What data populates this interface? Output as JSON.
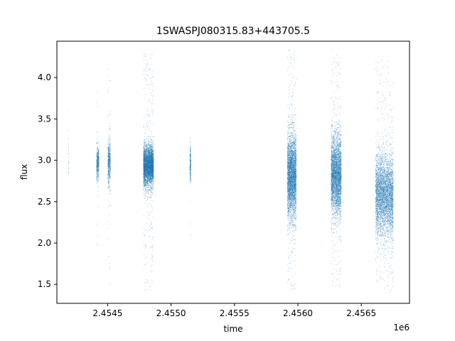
{
  "chart_data": {
    "type": "scatter",
    "title": "1SWASPJ080315.83+443705.5",
    "xlabel": "time",
    "ylabel": "flux",
    "x_offset_label": "1e6",
    "xlim": [
      2454100,
      2456880
    ],
    "ylim": [
      1.27,
      4.44
    ],
    "x_ticks": [
      2454500,
      2455000,
      2455500,
      2456000,
      2456500
    ],
    "x_tick_labels": [
      "2.4545",
      "2.4550",
      "2.4555",
      "2.4560",
      "2.4565"
    ],
    "y_ticks": [
      1.5,
      2.0,
      2.5,
      3.0,
      3.5,
      4.0
    ],
    "y_tick_labels": [
      "1.5",
      "2.0",
      "2.5",
      "3.0",
      "3.5",
      "4.0"
    ],
    "grid": false,
    "legend": "none",
    "point_color": "#1f77b4",
    "series": [
      {
        "values_summary": "per-observing-season flux clusters (center time, time span, mean flux, core spread, min, max, approx count)",
        "clusters": [
          {
            "x": 2454190,
            "span": 6,
            "y_mean": 3.02,
            "y_sd": 0.2,
            "y_min": 2.85,
            "y_max": 3.8,
            "n": 25
          },
          {
            "x": 2454420,
            "span": 20,
            "y_mean": 2.97,
            "y_sd": 0.1,
            "y_min": 1.85,
            "y_max": 3.88,
            "n": 500
          },
          {
            "x": 2454510,
            "span": 20,
            "y_mean": 2.97,
            "y_sd": 0.14,
            "y_min": 1.47,
            "y_max": 4.22,
            "n": 600
          },
          {
            "x": 2454820,
            "span": 80,
            "y_mean": 2.94,
            "y_sd": 0.12,
            "y_min": 1.43,
            "y_max": 4.32,
            "n": 4500
          },
          {
            "x": 2455150,
            "span": 6,
            "y_mean": 2.95,
            "y_sd": 0.1,
            "y_min": 2.05,
            "y_max": 3.4,
            "n": 300
          },
          {
            "x": 2455950,
            "span": 70,
            "y_mean": 2.82,
            "y_sd": 0.25,
            "y_min": 1.43,
            "y_max": 4.35,
            "n": 4000
          },
          {
            "x": 2456300,
            "span": 80,
            "y_mean": 2.82,
            "y_sd": 0.24,
            "y_min": 1.43,
            "y_max": 4.35,
            "n": 4000
          },
          {
            "x": 2456680,
            "span": 140,
            "y_mean": 2.58,
            "y_sd": 0.25,
            "y_min": 1.4,
            "y_max": 4.22,
            "n": 4500
          }
        ]
      }
    ]
  }
}
